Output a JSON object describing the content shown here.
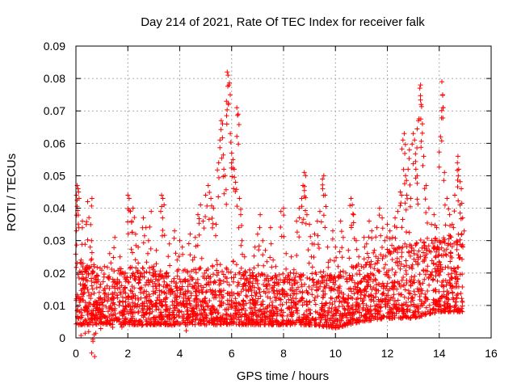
{
  "chart_data": {
    "type": "scatter",
    "title": "Day 214 of 2021, Rate Of TEC Index for receiver falk",
    "xlabel": "GPS time / hours",
    "ylabel": "ROTI / TECUs",
    "xlim": [
      0,
      16
    ],
    "ylim": [
      0,
      0.09
    ],
    "xticks": [
      0,
      2,
      4,
      6,
      8,
      10,
      12,
      14,
      16
    ],
    "yticks": [
      0,
      0.01,
      0.02,
      0.03,
      0.04,
      0.05,
      0.06,
      0.07,
      0.08,
      0.09
    ],
    "xtick_labels": [
      "0",
      "2",
      "4",
      "6",
      "8",
      "10",
      "12",
      "14",
      "16"
    ],
    "ytick_labels": [
      "0",
      "0.01",
      "0.02",
      "0.03",
      "0.04",
      "0.05",
      "0.06",
      "0.07",
      "0.08",
      "0.09"
    ],
    "grid": true,
    "marker": "+",
    "color": "#ff0000",
    "data_extent_x": [
      0,
      14.9
    ],
    "series": [
      {
        "name": "ROTI",
        "points": [
          [
            0.02,
            0.033
          ],
          [
            0.05,
            0.047
          ],
          [
            0.08,
            0.046
          ],
          [
            0.1,
            0.045
          ],
          [
            0.12,
            0.043
          ],
          [
            0.15,
            0.012
          ],
          [
            0.2,
            0.024
          ],
          [
            0.25,
            0.036
          ],
          [
            0.3,
            0.018
          ],
          [
            0.35,
            0.009
          ],
          [
            0.4,
            0.035
          ],
          [
            0.45,
            0.042
          ],
          [
            0.5,
            0.013
          ],
          [
            0.55,
            0.028
          ],
          [
            0.6,
            0.03
          ],
          [
            0.62,
            0.043
          ],
          [
            0.65,
            0.004
          ],
          [
            0.7,
            0.001
          ],
          [
            0.75,
            0.011
          ],
          [
            0.8,
            0.019
          ],
          [
            0.9,
            0.014
          ],
          [
            1.0,
            0.009
          ],
          [
            1.1,
            0.022
          ],
          [
            1.2,
            0.016
          ],
          [
            1.3,
            0.026
          ],
          [
            1.4,
            0.012
          ],
          [
            1.5,
            0.031
          ],
          [
            1.6,
            0.018
          ],
          [
            1.7,
            0.025
          ],
          [
            1.8,
            0.011
          ],
          [
            1.9,
            0.02
          ],
          [
            2.0,
            0.044
          ],
          [
            2.05,
            0.043
          ],
          [
            2.1,
            0.039
          ],
          [
            2.15,
            0.036
          ],
          [
            2.2,
            0.04
          ],
          [
            2.3,
            0.032
          ],
          [
            2.4,
            0.028
          ],
          [
            2.5,
            0.015
          ],
          [
            2.6,
            0.037
          ],
          [
            2.7,
            0.034
          ],
          [
            2.8,
            0.03
          ],
          [
            2.9,
            0.039
          ],
          [
            3.0,
            0.022
          ],
          [
            3.1,
            0.027
          ],
          [
            3.2,
            0.018
          ],
          [
            3.3,
            0.044
          ],
          [
            3.35,
            0.043
          ],
          [
            3.4,
            0.041
          ],
          [
            3.5,
            0.02
          ],
          [
            3.6,
            0.029
          ],
          [
            3.7,
            0.014
          ],
          [
            3.8,
            0.033
          ],
          [
            3.9,
            0.024
          ],
          [
            4.0,
            0.03
          ],
          [
            4.1,
            0.028
          ],
          [
            4.2,
            0.021
          ],
          [
            4.3,
            0.012
          ],
          [
            4.4,
            0.032
          ],
          [
            4.5,
            0.024
          ],
          [
            4.6,
            0.031
          ],
          [
            4.7,
            0.038
          ],
          [
            4.8,
            0.041
          ],
          [
            4.9,
            0.036
          ],
          [
            5.0,
            0.044
          ],
          [
            5.1,
            0.047
          ],
          [
            5.2,
            0.043
          ],
          [
            5.3,
            0.04
          ],
          [
            5.4,
            0.035
          ],
          [
            5.5,
            0.054
          ],
          [
            5.55,
            0.061
          ],
          [
            5.6,
            0.067
          ],
          [
            5.65,
            0.066
          ],
          [
            5.7,
            0.052
          ],
          [
            5.75,
            0.05
          ],
          [
            5.8,
            0.073
          ],
          [
            5.83,
            0.082
          ],
          [
            5.86,
            0.081
          ],
          [
            5.9,
            0.078
          ],
          [
            5.95,
            0.063
          ],
          [
            6.0,
            0.057
          ],
          [
            6.05,
            0.055
          ],
          [
            6.1,
            0.052
          ],
          [
            6.15,
            0.048
          ],
          [
            6.2,
            0.071
          ],
          [
            6.25,
            0.069
          ],
          [
            6.3,
            0.043
          ],
          [
            6.35,
            0.038
          ],
          [
            6.4,
            0.03
          ],
          [
            6.5,
            0.025
          ],
          [
            6.6,
            0.018
          ],
          [
            6.7,
            0.021
          ],
          [
            6.8,
            0.016
          ],
          [
            6.9,
            0.028
          ],
          [
            7.0,
            0.032
          ],
          [
            7.1,
            0.038
          ],
          [
            7.2,
            0.03
          ],
          [
            7.3,
            0.027
          ],
          [
            7.4,
            0.019
          ],
          [
            7.5,
            0.034
          ],
          [
            7.6,
            0.024
          ],
          [
            7.7,
            0.022
          ],
          [
            7.8,
            0.017
          ],
          [
            7.9,
            0.039
          ],
          [
            8.0,
            0.04
          ],
          [
            8.1,
            0.026
          ],
          [
            8.2,
            0.019
          ],
          [
            8.3,
            0.025
          ],
          [
            8.4,
            0.021
          ],
          [
            8.5,
            0.036
          ],
          [
            8.6,
            0.04
          ],
          [
            8.7,
            0.043
          ],
          [
            8.75,
            0.047
          ],
          [
            8.8,
            0.051
          ],
          [
            8.85,
            0.05
          ],
          [
            8.9,
            0.038
          ],
          [
            9.0,
            0.035
          ],
          [
            9.1,
            0.029
          ],
          [
            9.2,
            0.032
          ],
          [
            9.3,
            0.036
          ],
          [
            9.4,
            0.039
          ],
          [
            9.5,
            0.049
          ],
          [
            9.55,
            0.05
          ],
          [
            9.6,
            0.044
          ],
          [
            9.7,
            0.028
          ],
          [
            9.8,
            0.024
          ],
          [
            9.9,
            0.033
          ],
          [
            10.0,
            0.028
          ],
          [
            10.1,
            0.022
          ],
          [
            10.2,
            0.036
          ],
          [
            10.3,
            0.031
          ],
          [
            10.4,
            0.02
          ],
          [
            10.5,
            0.027
          ],
          [
            10.6,
            0.043
          ],
          [
            10.65,
            0.041
          ],
          [
            10.7,
            0.038
          ],
          [
            10.8,
            0.03
          ],
          [
            10.9,
            0.025
          ],
          [
            11.0,
            0.022
          ],
          [
            11.1,
            0.031
          ],
          [
            11.2,
            0.029
          ],
          [
            11.3,
            0.036
          ],
          [
            11.4,
            0.033
          ],
          [
            11.5,
            0.027
          ],
          [
            11.6,
            0.034
          ],
          [
            11.7,
            0.04
          ],
          [
            11.8,
            0.037
          ],
          [
            11.9,
            0.03
          ],
          [
            12.0,
            0.035
          ],
          [
            12.1,
            0.033
          ],
          [
            12.2,
            0.031
          ],
          [
            12.3,
            0.037
          ],
          [
            12.4,
            0.039
          ],
          [
            12.5,
            0.045
          ],
          [
            12.55,
            0.044
          ],
          [
            12.6,
            0.061
          ],
          [
            12.65,
            0.063
          ],
          [
            12.7,
            0.05
          ],
          [
            12.75,
            0.044
          ],
          [
            12.8,
            0.052
          ],
          [
            12.85,
            0.058
          ],
          [
            12.9,
            0.043
          ],
          [
            13.0,
            0.063
          ],
          [
            13.05,
            0.061
          ],
          [
            13.1,
            0.052
          ],
          [
            13.15,
            0.05
          ],
          [
            13.2,
            0.067
          ],
          [
            13.25,
            0.077
          ],
          [
            13.28,
            0.078
          ],
          [
            13.3,
            0.072
          ],
          [
            13.35,
            0.066
          ],
          [
            13.4,
            0.056
          ],
          [
            13.5,
            0.047
          ],
          [
            13.6,
            0.04
          ],
          [
            13.7,
            0.035
          ],
          [
            13.8,
            0.038
          ],
          [
            13.9,
            0.034
          ],
          [
            14.0,
            0.03
          ],
          [
            14.05,
            0.062
          ],
          [
            14.1,
            0.079
          ],
          [
            14.13,
            0.075
          ],
          [
            14.15,
            0.071
          ],
          [
            14.2,
            0.051
          ],
          [
            14.3,
            0.043
          ],
          [
            14.4,
            0.038
          ],
          [
            14.5,
            0.035
          ],
          [
            14.6,
            0.044
          ],
          [
            14.7,
            0.054
          ],
          [
            14.72,
            0.056
          ],
          [
            14.75,
            0.052
          ],
          [
            14.8,
            0.041
          ],
          [
            14.85,
            0.046
          ],
          [
            14.9,
            0.037
          ]
        ],
        "bulk_band": [
          {
            "x": 0.0,
            "low": 0.004,
            "high": 0.024
          },
          {
            "x": 1.0,
            "low": 0.004,
            "high": 0.022
          },
          {
            "x": 2.0,
            "low": 0.004,
            "high": 0.022
          },
          {
            "x": 3.0,
            "low": 0.004,
            "high": 0.022
          },
          {
            "x": 4.0,
            "low": 0.004,
            "high": 0.021
          },
          {
            "x": 5.0,
            "low": 0.004,
            "high": 0.022
          },
          {
            "x": 6.0,
            "low": 0.004,
            "high": 0.024
          },
          {
            "x": 7.0,
            "low": 0.004,
            "high": 0.02
          },
          {
            "x": 8.0,
            "low": 0.004,
            "high": 0.02
          },
          {
            "x": 9.0,
            "low": 0.004,
            "high": 0.02
          },
          {
            "x": 10.0,
            "low": 0.003,
            "high": 0.021
          },
          {
            "x": 11.0,
            "low": 0.005,
            "high": 0.023
          },
          {
            "x": 12.0,
            "low": 0.006,
            "high": 0.027
          },
          {
            "x": 13.0,
            "low": 0.006,
            "high": 0.03
          },
          {
            "x": 14.0,
            "low": 0.008,
            "high": 0.031
          },
          {
            "x": 14.9,
            "low": 0.008,
            "high": 0.033
          }
        ]
      }
    ]
  }
}
